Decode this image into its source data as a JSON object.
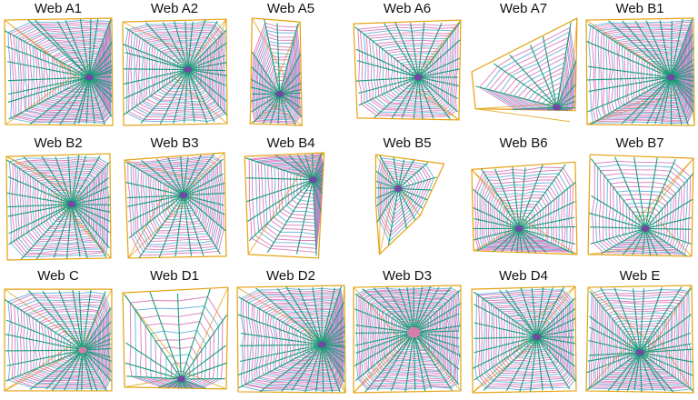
{
  "colors": {
    "radial": "#1a9e77",
    "spiral": "#d56fb7",
    "frame": "#e6a112",
    "capture": "#5aa7d6",
    "hub": "#7b3fa8",
    "hub_pink": "#e77bb0"
  },
  "webs": [
    {
      "id": "A1",
      "title": "Web A1",
      "style": "square-dense"
    },
    {
      "id": "A2",
      "title": "Web A2",
      "style": "square"
    },
    {
      "id": "A5",
      "title": "Web A5",
      "style": "narrow-top"
    },
    {
      "id": "A6",
      "title": "Web A6",
      "style": "wide"
    },
    {
      "id": "A7",
      "title": "Web A7",
      "style": "corner"
    },
    {
      "id": "B1",
      "title": "Web B1",
      "style": "square-dense"
    },
    {
      "id": "B2",
      "title": "Web B2",
      "style": "square"
    },
    {
      "id": "B3",
      "title": "Web B3",
      "style": "skewed"
    },
    {
      "id": "B4",
      "title": "Web B4",
      "style": "narrow"
    },
    {
      "id": "B5",
      "title": "Web B5",
      "style": "star"
    },
    {
      "id": "B6",
      "title": "Web B6",
      "style": "lower"
    },
    {
      "id": "B7",
      "title": "Web B7",
      "style": "cross"
    },
    {
      "id": "C",
      "title": "Web C",
      "style": "round"
    },
    {
      "id": "D1",
      "title": "Web D1",
      "style": "sparse-bottom"
    },
    {
      "id": "D2",
      "title": "Web D2",
      "style": "square-dense"
    },
    {
      "id": "D3",
      "title": "Web D3",
      "style": "orb"
    },
    {
      "id": "D4",
      "title": "Web D4",
      "style": "square"
    },
    {
      "id": "E",
      "title": "Web E",
      "style": "round-pink"
    }
  ]
}
